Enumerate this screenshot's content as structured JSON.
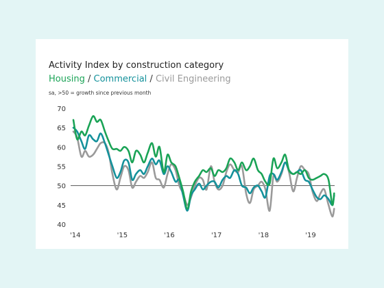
{
  "card": {
    "title": "Activity Index by construction category",
    "note": "sa, >50 = growth since previous month"
  },
  "chart_data": {
    "type": "line",
    "title": "Activity Index by construction category",
    "legend_text": [
      {
        "text": "Housing",
        "color": "#1aa356"
      },
      {
        "text": " / ",
        "color": "#333333"
      },
      {
        "text": "Commercial",
        "color": "#14919b"
      },
      {
        "text": " / ",
        "color": "#333333"
      },
      {
        "text": "Civil Engineering",
        "color": "#9a9a9a"
      }
    ],
    "note": "sa, >50 = growth since previous month",
    "ylim": [
      40,
      70
    ],
    "yticks": [
      40,
      45,
      50,
      55,
      60,
      65,
      70
    ],
    "xlim": [
      2014,
      2019.55
    ],
    "xticks": [
      {
        "value": 2014,
        "label": "'14"
      },
      {
        "value": 2015,
        "label": "'15"
      },
      {
        "value": 2016,
        "label": "'16"
      },
      {
        "value": 2017,
        "label": "'17"
      },
      {
        "value": 2018,
        "label": "'18"
      },
      {
        "value": 2019,
        "label": "'19"
      }
    ],
    "reference_line": 50,
    "grid": false,
    "series": [
      {
        "name": "Housing",
        "color": "#1aa356",
        "points": [
          [
            2014.0,
            67.0
          ],
          [
            2014.08,
            62.0
          ],
          [
            2014.17,
            64.0
          ],
          [
            2014.25,
            63.0
          ],
          [
            2014.33,
            65.5
          ],
          [
            2014.42,
            68.0
          ],
          [
            2014.5,
            66.5
          ],
          [
            2014.58,
            67.0
          ],
          [
            2014.67,
            64.0
          ],
          [
            2014.75,
            61.5
          ],
          [
            2014.83,
            59.5
          ],
          [
            2014.92,
            59.5
          ],
          [
            2015.0,
            59.0
          ],
          [
            2015.08,
            60.0
          ],
          [
            2015.17,
            59.0
          ],
          [
            2015.25,
            56.0
          ],
          [
            2015.33,
            59.0
          ],
          [
            2015.42,
            58.0
          ],
          [
            2015.5,
            56.0
          ],
          [
            2015.58,
            58.5
          ],
          [
            2015.67,
            61.0
          ],
          [
            2015.75,
            57.5
          ],
          [
            2015.83,
            60.0
          ],
          [
            2015.92,
            53.5
          ],
          [
            2016.0,
            58.0
          ],
          [
            2016.08,
            56.0
          ],
          [
            2016.17,
            55.0
          ],
          [
            2016.25,
            52.0
          ],
          [
            2016.33,
            48.5
          ],
          [
            2016.42,
            44.0
          ],
          [
            2016.5,
            48.5
          ],
          [
            2016.58,
            51.0
          ],
          [
            2016.67,
            52.5
          ],
          [
            2016.75,
            54.0
          ],
          [
            2016.83,
            53.5
          ],
          [
            2016.92,
            54.5
          ],
          [
            2017.0,
            52.5
          ],
          [
            2017.08,
            54.0
          ],
          [
            2017.17,
            53.5
          ],
          [
            2017.25,
            54.5
          ],
          [
            2017.33,
            57.0
          ],
          [
            2017.42,
            56.0
          ],
          [
            2017.5,
            54.0
          ],
          [
            2017.58,
            56.0
          ],
          [
            2017.67,
            54.0
          ],
          [
            2017.75,
            55.0
          ],
          [
            2017.83,
            57.0
          ],
          [
            2017.92,
            54.0
          ],
          [
            2018.0,
            53.0
          ],
          [
            2018.08,
            51.0
          ],
          [
            2018.17,
            50.5
          ],
          [
            2018.25,
            57.0
          ],
          [
            2018.33,
            54.5
          ],
          [
            2018.42,
            56.0
          ],
          [
            2018.5,
            58.0
          ],
          [
            2018.58,
            54.0
          ],
          [
            2018.67,
            53.0
          ],
          [
            2018.75,
            53.5
          ],
          [
            2018.83,
            53.0
          ],
          [
            2018.92,
            54.0
          ],
          [
            2019.0,
            52.0
          ],
          [
            2019.08,
            51.5
          ],
          [
            2019.17,
            52.0
          ],
          [
            2019.25,
            52.5
          ],
          [
            2019.33,
            53.0
          ],
          [
            2019.42,
            51.5
          ],
          [
            2019.5,
            45.0
          ],
          [
            2019.54,
            48.0
          ]
        ]
      },
      {
        "name": "Commercial",
        "color": "#14919b",
        "points": [
          [
            2014.0,
            65.0
          ],
          [
            2014.08,
            64.0
          ],
          [
            2014.17,
            61.5
          ],
          [
            2014.25,
            59.5
          ],
          [
            2014.33,
            63.0
          ],
          [
            2014.42,
            62.0
          ],
          [
            2014.5,
            61.5
          ],
          [
            2014.58,
            63.5
          ],
          [
            2014.67,
            61.0
          ],
          [
            2014.75,
            58.0
          ],
          [
            2014.83,
            55.0
          ],
          [
            2014.92,
            52.0
          ],
          [
            2015.0,
            53.5
          ],
          [
            2015.08,
            56.5
          ],
          [
            2015.17,
            56.0
          ],
          [
            2015.25,
            51.5
          ],
          [
            2015.33,
            53.0
          ],
          [
            2015.42,
            54.0
          ],
          [
            2015.5,
            53.0
          ],
          [
            2015.58,
            55.0
          ],
          [
            2015.67,
            57.0
          ],
          [
            2015.75,
            55.5
          ],
          [
            2015.83,
            56.5
          ],
          [
            2015.92,
            53.0
          ],
          [
            2016.0,
            55.0
          ],
          [
            2016.08,
            53.5
          ],
          [
            2016.17,
            51.0
          ],
          [
            2016.25,
            51.5
          ],
          [
            2016.33,
            47.5
          ],
          [
            2016.42,
            43.5
          ],
          [
            2016.5,
            47.5
          ],
          [
            2016.58,
            49.0
          ],
          [
            2016.67,
            50.5
          ],
          [
            2016.75,
            49.0
          ],
          [
            2016.83,
            50.0
          ],
          [
            2016.92,
            51.0
          ],
          [
            2017.0,
            51.0
          ],
          [
            2017.08,
            49.5
          ],
          [
            2017.17,
            51.5
          ],
          [
            2017.25,
            52.5
          ],
          [
            2017.33,
            52.0
          ],
          [
            2017.42,
            54.0
          ],
          [
            2017.5,
            53.0
          ],
          [
            2017.58,
            50.0
          ],
          [
            2017.67,
            49.5
          ],
          [
            2017.75,
            48.0
          ],
          [
            2017.83,
            49.5
          ],
          [
            2017.92,
            50.0
          ],
          [
            2018.0,
            48.5
          ],
          [
            2018.08,
            47.0
          ],
          [
            2018.17,
            52.5
          ],
          [
            2018.25,
            53.0
          ],
          [
            2018.33,
            51.5
          ],
          [
            2018.42,
            53.5
          ],
          [
            2018.5,
            56.0
          ],
          [
            2018.58,
            54.0
          ],
          [
            2018.67,
            53.0
          ],
          [
            2018.75,
            53.5
          ],
          [
            2018.83,
            54.0
          ],
          [
            2018.92,
            51.5
          ],
          [
            2019.0,
            51.0
          ],
          [
            2019.08,
            49.0
          ],
          [
            2019.17,
            47.0
          ],
          [
            2019.25,
            46.5
          ],
          [
            2019.33,
            47.5
          ],
          [
            2019.42,
            46.5
          ],
          [
            2019.5,
            45.0
          ],
          [
            2019.54,
            47.5
          ]
        ]
      },
      {
        "name": "Civil Engineering",
        "color": "#9a9a9a",
        "points": [
          [
            2014.0,
            64.0
          ],
          [
            2014.08,
            62.5
          ],
          [
            2014.17,
            57.5
          ],
          [
            2014.25,
            59.0
          ],
          [
            2014.33,
            57.5
          ],
          [
            2014.42,
            58.0
          ],
          [
            2014.5,
            59.5
          ],
          [
            2014.58,
            61.0
          ],
          [
            2014.67,
            61.0
          ],
          [
            2014.75,
            58.5
          ],
          [
            2014.83,
            53.0
          ],
          [
            2014.92,
            49.0
          ],
          [
            2015.0,
            52.0
          ],
          [
            2015.08,
            55.0
          ],
          [
            2015.17,
            54.0
          ],
          [
            2015.25,
            49.5
          ],
          [
            2015.33,
            51.0
          ],
          [
            2015.42,
            52.5
          ],
          [
            2015.5,
            52.0
          ],
          [
            2015.58,
            53.5
          ],
          [
            2015.67,
            56.0
          ],
          [
            2015.75,
            52.0
          ],
          [
            2015.83,
            51.5
          ],
          [
            2015.92,
            49.5
          ],
          [
            2016.0,
            53.0
          ],
          [
            2016.08,
            55.5
          ],
          [
            2016.17,
            54.0
          ],
          [
            2016.25,
            50.0
          ],
          [
            2016.33,
            48.0
          ],
          [
            2016.42,
            45.0
          ],
          [
            2016.5,
            47.0
          ],
          [
            2016.58,
            50.0
          ],
          [
            2016.67,
            52.0
          ],
          [
            2016.75,
            51.5
          ],
          [
            2016.83,
            49.0
          ],
          [
            2016.92,
            55.0
          ],
          [
            2017.0,
            51.0
          ],
          [
            2017.08,
            49.0
          ],
          [
            2017.17,
            50.0
          ],
          [
            2017.25,
            53.5
          ],
          [
            2017.33,
            55.5
          ],
          [
            2017.42,
            54.0
          ],
          [
            2017.5,
            53.5
          ],
          [
            2017.58,
            55.0
          ],
          [
            2017.67,
            48.0
          ],
          [
            2017.75,
            45.5
          ],
          [
            2017.83,
            49.0
          ],
          [
            2017.92,
            50.0
          ],
          [
            2018.0,
            51.0
          ],
          [
            2018.08,
            49.0
          ],
          [
            2018.17,
            43.5
          ],
          [
            2018.25,
            52.5
          ],
          [
            2018.33,
            51.0
          ],
          [
            2018.42,
            53.0
          ],
          [
            2018.5,
            56.0
          ],
          [
            2018.58,
            53.5
          ],
          [
            2018.67,
            48.5
          ],
          [
            2018.75,
            52.0
          ],
          [
            2018.83,
            55.0
          ],
          [
            2018.92,
            54.0
          ],
          [
            2019.0,
            53.0
          ],
          [
            2019.08,
            48.5
          ],
          [
            2019.17,
            46.0
          ],
          [
            2019.25,
            48.0
          ],
          [
            2019.33,
            49.0
          ],
          [
            2019.42,
            45.0
          ],
          [
            2019.5,
            42.0
          ],
          [
            2019.54,
            44.0
          ]
        ]
      }
    ]
  }
}
